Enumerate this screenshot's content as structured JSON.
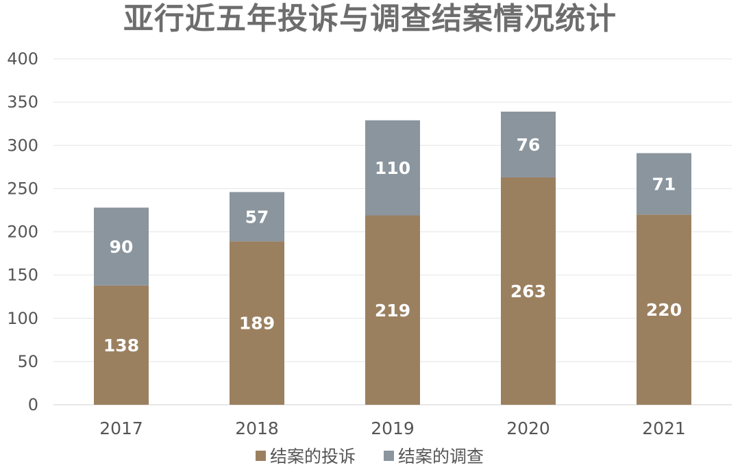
{
  "chart_data": {
    "type": "bar",
    "stacked": true,
    "title": "亚行近五年投诉与调查结案情况统计",
    "xlabel": "",
    "ylabel": "",
    "categories": [
      "2017",
      "2018",
      "2019",
      "2020",
      "2021"
    ],
    "series": [
      {
        "name": "结案的投诉",
        "color": "#9b8060",
        "values": [
          138,
          189,
          219,
          263,
          220
        ]
      },
      {
        "name": "结案的调查",
        "color": "#8a959e",
        "values": [
          90,
          57,
          110,
          76,
          71
        ]
      }
    ],
    "ylim": [
      0,
      400
    ],
    "yticks": [
      0,
      50,
      100,
      150,
      200,
      250,
      300,
      350,
      400
    ],
    "grid": true,
    "legend_position": "bottom",
    "data_labels": true
  }
}
